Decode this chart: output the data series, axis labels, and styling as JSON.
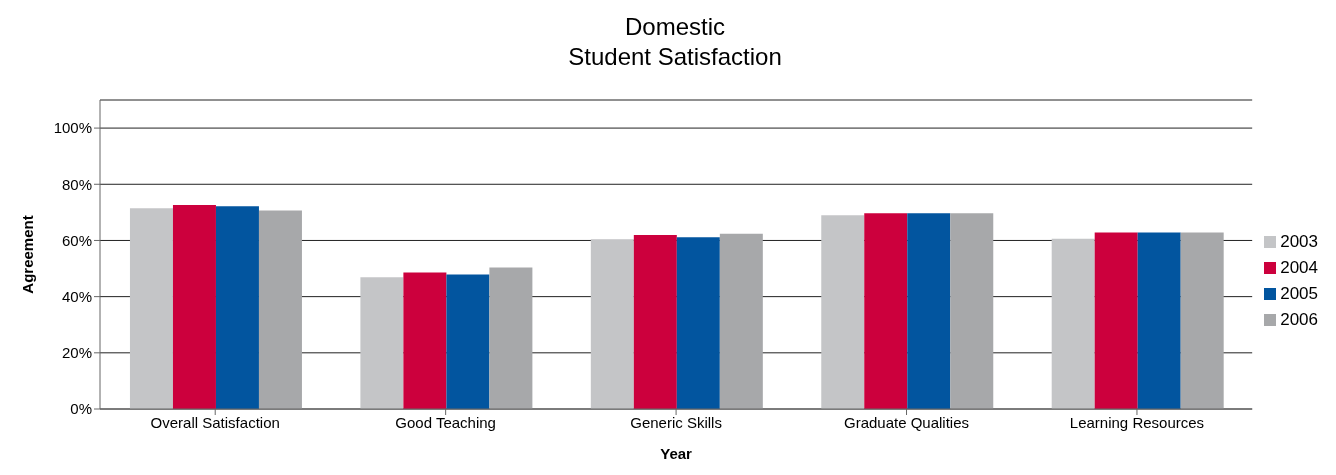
{
  "chart_data": {
    "type": "bar",
    "title": "Domestic\nStudent Satisfaction",
    "xlabel": "Year",
    "ylabel": "Agreement",
    "categories": [
      "Overall Satisfaction",
      "Good Teaching",
      "Generic Skills",
      "Graduate Qualities",
      "Learning Resources"
    ],
    "series": [
      {
        "name": "2003",
        "color": "#c4c5c7",
        "values": [
          71.5,
          46.9,
          60.4,
          69.0,
          60.6
        ]
      },
      {
        "name": "2004",
        "color": "#cc003d",
        "values": [
          72.6,
          48.6,
          61.9,
          69.7,
          62.8
        ]
      },
      {
        "name": "2005",
        "color": "#02559f",
        "values": [
          72.2,
          47.9,
          61.1,
          69.7,
          62.8
        ]
      },
      {
        "name": "2006",
        "color": "#a7a8aa",
        "values": [
          70.7,
          50.4,
          62.4,
          69.7,
          62.8
        ]
      }
    ],
    "ylim": [
      0,
      110
    ],
    "yticks": [
      {
        "value": 0,
        "label": "0%"
      },
      {
        "value": 20,
        "label": "20%"
      },
      {
        "value": 40,
        "label": "40%"
      },
      {
        "value": 60,
        "label": "60%"
      },
      {
        "value": 80,
        "label": "80%"
      },
      {
        "value": 100,
        "label": "100%"
      }
    ],
    "grid": "y",
    "legend": "right"
  }
}
